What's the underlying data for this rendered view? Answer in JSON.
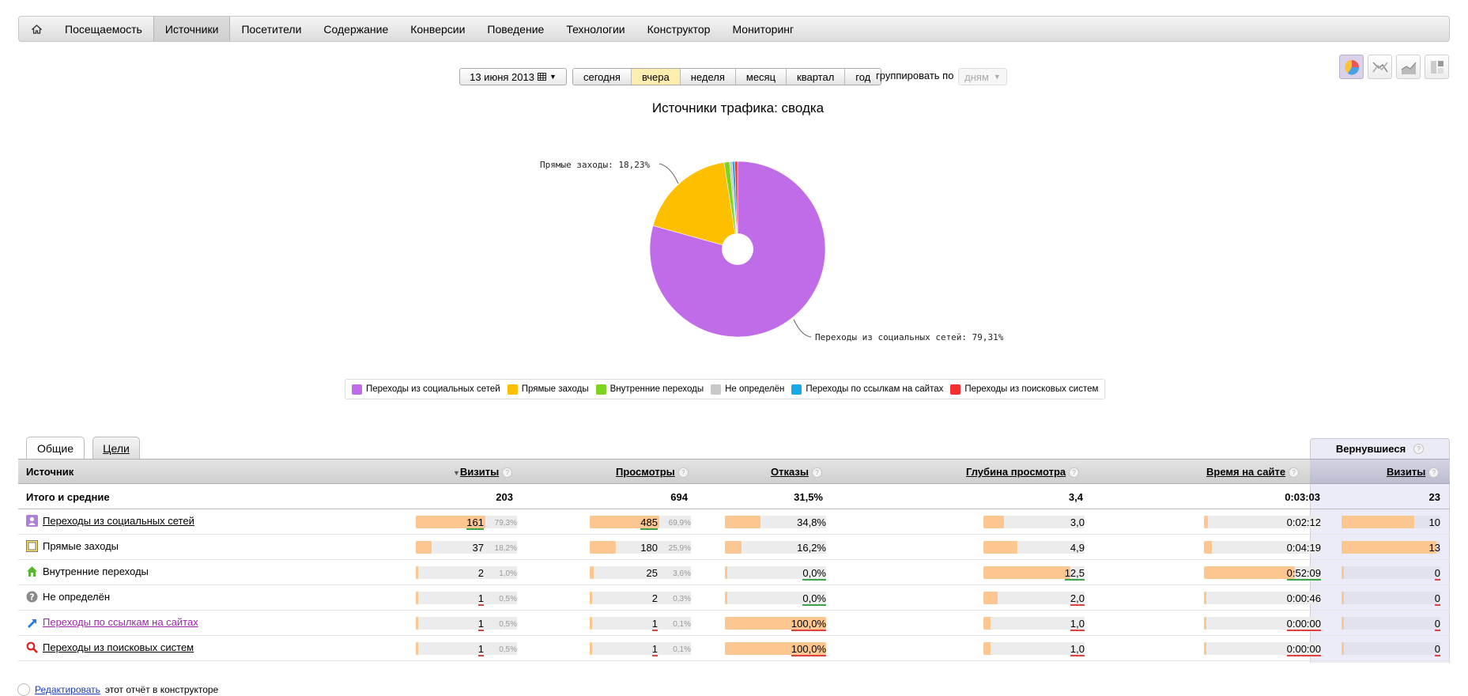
{
  "nav": {
    "items": [
      "Посещаемость",
      "Источники",
      "Посетители",
      "Содержание",
      "Конверсии",
      "Поведение",
      "Технологии",
      "Конструктор",
      "Мониторинг"
    ],
    "active_index": 1
  },
  "period": {
    "date": "13 июня 2013",
    "options": [
      "сегодня",
      "вчера",
      "неделя",
      "месяц",
      "квартал",
      "год"
    ],
    "active_index": 1,
    "group_label": "группировать по",
    "group_value": "дням"
  },
  "chart_data": {
    "type": "pie",
    "title": "Источники трафика: сводка",
    "labels": [
      "Переходы из социальных сетей",
      "Прямые заходы",
      "Внутренние переходы",
      "Не определён",
      "Переходы по ссылкам на сайтах",
      "Переходы из поисковых систем"
    ],
    "values": [
      79.31,
      18.23,
      0.99,
      0.49,
      0.49,
      0.49
    ],
    "colors": [
      "#c06be8",
      "#fdbf00",
      "#7cd320",
      "#c8c8c8",
      "#1aa9e8",
      "#f23030"
    ],
    "annotations": [
      "Прямые заходы: 18,23%",
      "Переходы из социальных сетей: 79,31%"
    ],
    "legend_position": "bottom"
  },
  "tabs": [
    "Общие",
    "Цели"
  ],
  "returned_tab": "Вернувшиеся",
  "table": {
    "headers": {
      "source": "Источник",
      "visits": "Визиты",
      "views": "Просмотры",
      "bounces": "Отказы",
      "depth": "Глубина просмотра",
      "time": "Время на сайте",
      "ret_visits": "Визиты"
    },
    "totals": {
      "label": "Итого и средние",
      "visits": "203",
      "views": "694",
      "bounces": "31,5%",
      "depth": "3,4",
      "time": "0:03:03",
      "ret_visits": "23"
    },
    "rows": [
      {
        "source": "Переходы из социальных сетей",
        "icon": "social-icon",
        "visits": "161",
        "visits_pct": "79,3%",
        "views": "485",
        "views_pct": "69,9%",
        "bounces": "34,8%",
        "depth": "3,0",
        "time": "0:02:12",
        "ret_visits": "10"
      },
      {
        "source": "Прямые заходы",
        "icon": "direct-icon",
        "visits": "37",
        "visits_pct": "18,2%",
        "views": "180",
        "views_pct": "25,9%",
        "bounces": "16,2%",
        "depth": "4,9",
        "time": "0:04:19",
        "ret_visits": "13"
      },
      {
        "source": "Внутренние переходы",
        "icon": "internal-icon",
        "visits": "2",
        "visits_pct": "1,0%",
        "views": "25",
        "views_pct": "3,6%",
        "bounces": "0,0%",
        "depth": "12,5",
        "time": "0:52:09",
        "ret_visits": "0"
      },
      {
        "source": "Не определён",
        "icon": "unknown-icon",
        "visits": "1",
        "visits_pct": "0,5%",
        "views": "2",
        "views_pct": "0,3%",
        "bounces": "0,0%",
        "depth": "2,0",
        "time": "0:00:46",
        "ret_visits": "0"
      },
      {
        "source": "Переходы по ссылкам на сайтах",
        "icon": "link-icon",
        "visits": "1",
        "visits_pct": "0,5%",
        "views": "1",
        "views_pct": "0,1%",
        "bounces": "100,0%",
        "depth": "1,0",
        "time": "0:00:00",
        "ret_visits": "0"
      },
      {
        "source": "Переходы из поисковых систем",
        "icon": "search-icon",
        "visits": "1",
        "visits_pct": "0,5%",
        "views": "1",
        "views_pct": "0,1%",
        "bounces": "100,0%",
        "depth": "1,0",
        "time": "0:00:00",
        "ret_visits": "0"
      }
    ]
  },
  "footer": {
    "link": "Редактировать",
    "text": "этот отчёт в конструкторе"
  }
}
